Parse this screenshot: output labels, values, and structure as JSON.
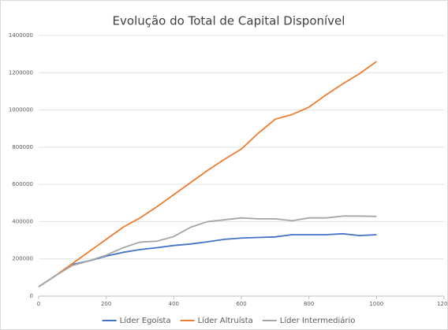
{
  "chart_data": {
    "type": "line",
    "title": "Evolução do Total de Capital Disponível",
    "x": [
      0,
      50,
      100,
      150,
      200,
      250,
      300,
      350,
      400,
      450,
      500,
      550,
      600,
      650,
      700,
      750,
      800,
      850,
      900,
      950,
      1000
    ],
    "series": [
      {
        "name": "Líder Egoísta",
        "color": "#4472c4",
        "values": [
          50000,
          110000,
          170000,
          190000,
          215000,
          235000,
          250000,
          260000,
          272000,
          280000,
          292000,
          305000,
          312000,
          315000,
          318000,
          330000,
          330000,
          330000,
          335000,
          325000,
          330000
        ]
      },
      {
        "name": "Líder Altruísta",
        "color": "#ed7d31",
        "values": [
          50000,
          110000,
          175000,
          240000,
          305000,
          370000,
          420000,
          480000,
          545000,
          610000,
          675000,
          735000,
          790000,
          875000,
          950000,
          975000,
          1015000,
          1080000,
          1140000,
          1195000,
          1260000
        ]
      },
      {
        "name": "Líder Intermediário",
        "color": "#a5a5a5",
        "values": [
          50000,
          110000,
          165000,
          190000,
          220000,
          260000,
          290000,
          295000,
          320000,
          370000,
          400000,
          410000,
          420000,
          415000,
          415000,
          405000,
          420000,
          420000,
          430000,
          430000,
          428000
        ]
      }
    ],
    "xlim": [
      0,
      1200
    ],
    "xticks": [
      0,
      200,
      400,
      600,
      800,
      1000,
      1200
    ],
    "ylim": [
      0,
      1400000
    ],
    "yticks": [
      0,
      200000,
      400000,
      600000,
      800000,
      1000000,
      1200000,
      1400000
    ],
    "grid": true,
    "legend": "bottom"
  }
}
